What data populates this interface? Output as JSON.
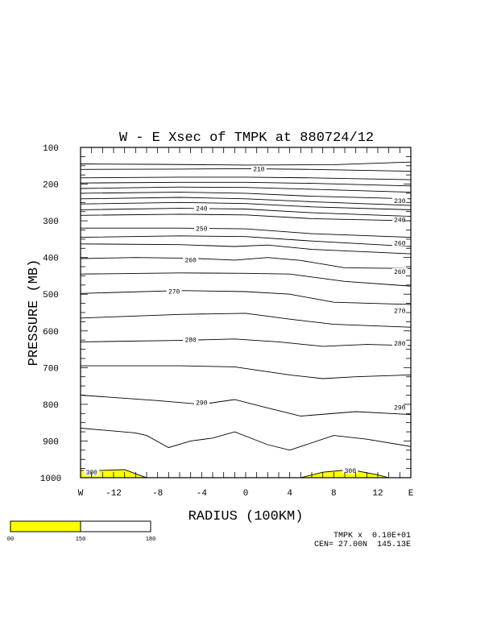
{
  "chart_data": {
    "type": "contour",
    "title": "W - E Xsec of TMPK at 880724/12",
    "xlabel": "RADIUS (100KM)",
    "ylabel": "PRESSURE (MB)",
    "xlim": [
      -15,
      15
    ],
    "ylim": [
      1000,
      100
    ],
    "x_ticks": [
      {
        "v": -15,
        "label": "W"
      },
      {
        "v": -12,
        "label": "-12"
      },
      {
        "v": -8,
        "label": "-8"
      },
      {
        "v": -4,
        "label": "-4"
      },
      {
        "v": 0,
        "label": "0"
      },
      {
        "v": 4,
        "label": "4"
      },
      {
        "v": 8,
        "label": "8"
      },
      {
        "v": 12,
        "label": "12"
      },
      {
        "v": 15,
        "label": "E"
      }
    ],
    "y_ticks": [
      {
        "v": 100,
        "label": "100"
      },
      {
        "v": 200,
        "label": "200"
      },
      {
        "v": 300,
        "label": "300"
      },
      {
        "v": 400,
        "label": "400"
      },
      {
        "v": 500,
        "label": "500"
      },
      {
        "v": 600,
        "label": "600"
      },
      {
        "v": 700,
        "label": "700"
      },
      {
        "v": 800,
        "label": "800"
      },
      {
        "v": 900,
        "label": "900"
      },
      {
        "v": 1000,
        "label": "1000"
      }
    ],
    "contours": [
      {
        "points": [
          [
            -15,
            145
          ],
          [
            -8,
            146
          ],
          [
            0,
            148
          ],
          [
            8,
            147
          ],
          [
            15,
            140
          ]
        ]
      },
      {
        "points": [
          [
            -15,
            160
          ],
          [
            -6,
            159
          ],
          [
            0,
            158
          ],
          [
            6,
            160
          ],
          [
            15,
            165
          ]
        ],
        "label": "210",
        "label_at": [
          1.2,
          158
        ]
      },
      {
        "points": [
          [
            -15,
            183
          ],
          [
            -6,
            181
          ],
          [
            0,
            181
          ],
          [
            6,
            183
          ],
          [
            15,
            188
          ]
        ]
      },
      {
        "points": [
          [
            -15,
            197
          ],
          [
            -6,
            195
          ],
          [
            0,
            195
          ],
          [
            6,
            198
          ],
          [
            15,
            205
          ]
        ]
      },
      {
        "points": [
          [
            -15,
            212
          ],
          [
            -6,
            208
          ],
          [
            0,
            209
          ],
          [
            6,
            214
          ],
          [
            15,
            222
          ]
        ]
      },
      {
        "points": [
          [
            -15,
            225
          ],
          [
            -6,
            222
          ],
          [
            0,
            225
          ],
          [
            6,
            233
          ],
          [
            15,
            240
          ]
        ]
      },
      {
        "points": [
          [
            -15,
            240
          ],
          [
            -6,
            236
          ],
          [
            0,
            240
          ],
          [
            6,
            248
          ],
          [
            15,
            258
          ]
        ],
        "label": "230",
        "label_at": [
          14,
          245
        ]
      },
      {
        "points": [
          [
            -15,
            254
          ],
          [
            -6,
            250
          ],
          [
            0,
            253
          ],
          [
            6,
            262
          ],
          [
            15,
            270
          ]
        ]
      },
      {
        "points": [
          [
            -15,
            270
          ],
          [
            -6,
            266
          ],
          [
            0,
            268
          ],
          [
            6,
            278
          ],
          [
            15,
            288
          ]
        ],
        "label": "240",
        "label_at": [
          -4,
          266
        ]
      },
      {
        "points": [
          [
            -15,
            285
          ],
          [
            -6,
            282
          ],
          [
            0,
            284
          ],
          [
            6,
            294
          ],
          [
            15,
            300
          ]
        ],
        "label": "240",
        "label_at": [
          14,
          297
        ]
      },
      {
        "points": [
          [
            -15,
            320
          ],
          [
            -6,
            320
          ],
          [
            0,
            322
          ],
          [
            6,
            335
          ],
          [
            15,
            345
          ]
        ],
        "label": "250",
        "label_at": [
          -4,
          321
        ]
      },
      {
        "points": [
          [
            -15,
            345
          ],
          [
            -6,
            341
          ],
          [
            0,
            343
          ],
          [
            6,
            355
          ],
          [
            15,
            370
          ]
        ]
      },
      {
        "points": [
          [
            -15,
            363
          ],
          [
            -6,
            365
          ],
          [
            -1,
            370
          ],
          [
            2,
            366
          ],
          [
            6,
            378
          ],
          [
            15,
            390
          ]
        ],
        "label": "260",
        "label_at": [
          14,
          360
        ]
      },
      {
        "points": [
          [
            -15,
            403
          ],
          [
            -10,
            400
          ],
          [
            -5,
            402
          ],
          [
            -1,
            407
          ],
          [
            2,
            400
          ],
          [
            5,
            408
          ],
          [
            9,
            428
          ],
          [
            15,
            430
          ]
        ],
        "label": "260",
        "label_at": [
          -5,
          406
        ]
      },
      {
        "points": [
          [
            -15,
            445
          ],
          [
            -6,
            442
          ],
          [
            0,
            443
          ],
          [
            4,
            445
          ],
          [
            9,
            465
          ],
          [
            15,
            478
          ]
        ],
        "label": "260",
        "label_at": [
          14,
          438
        ]
      },
      {
        "points": [
          [
            -15,
            498
          ],
          [
            -6,
            490
          ],
          [
            0,
            493
          ],
          [
            4,
            500
          ],
          [
            8,
            522
          ],
          [
            15,
            528
          ]
        ],
        "label": "270",
        "label_at": [
          -6.5,
          492
        ]
      },
      {
        "points": [
          [
            -15,
            565
          ],
          [
            -6,
            555
          ],
          [
            0,
            552
          ],
          [
            4,
            568
          ],
          [
            8,
            582
          ],
          [
            15,
            590
          ]
        ],
        "label": "270",
        "label_at": [
          14,
          544
        ]
      },
      {
        "points": [
          [
            -15,
            630
          ],
          [
            -6,
            626
          ],
          [
            -1,
            622
          ],
          [
            3,
            630
          ],
          [
            7,
            642
          ],
          [
            11,
            637
          ],
          [
            15,
            640
          ]
        ],
        "label": "280",
        "label_at": [
          -5,
          624
        ]
      },
      {
        "points": [
          [
            -15,
            695
          ],
          [
            -6,
            695
          ],
          [
            -1,
            698
          ],
          [
            4,
            720
          ],
          [
            7,
            730
          ],
          [
            10,
            725
          ],
          [
            15,
            720
          ]
        ],
        "label": "280",
        "label_at": [
          14,
          633
        ]
      },
      {
        "points": [
          [
            -15,
            775
          ],
          [
            -8,
            790
          ],
          [
            -4,
            800
          ],
          [
            -1,
            787
          ],
          [
            2,
            810
          ],
          [
            5,
            832
          ],
          [
            10,
            820
          ],
          [
            15,
            828
          ]
        ],
        "label": "290",
        "label_at": [
          -4,
          795
        ]
      },
      {
        "points": [
          [
            -15,
            865
          ],
          [
            -10,
            878
          ],
          [
            -9,
            885
          ],
          [
            -7,
            918
          ],
          [
            -5,
            900
          ],
          [
            -3,
            892
          ],
          [
            -1,
            875
          ],
          [
            2,
            910
          ],
          [
            4,
            925
          ],
          [
            8,
            885
          ],
          [
            11,
            895
          ],
          [
            15,
            915
          ]
        ],
        "label": "290",
        "label_at": [
          14,
          808
        ]
      },
      {
        "points": [
          [
            -15,
            980
          ],
          [
            -13,
            980
          ],
          [
            -11,
            978
          ],
          [
            -9.5,
            995
          ],
          [
            -9,
            1000
          ]
        ],
        "label": "300",
        "label_at": [
          -14,
          985
        ]
      },
      {
        "points": [
          [
            5,
            1000
          ],
          [
            7,
            985
          ],
          [
            9.5,
            978
          ],
          [
            12,
            992
          ],
          [
            13,
            1000
          ]
        ],
        "label": "300",
        "label_at": [
          9.5,
          980
        ]
      }
    ],
    "fill_color": "#ffff00",
    "filled_regions": [
      {
        "points": [
          [
            -15,
            1000
          ],
          [
            -15,
            980
          ],
          [
            -13,
            980
          ],
          [
            -11,
            978
          ],
          [
            -9.5,
            995
          ],
          [
            -9,
            1000
          ]
        ]
      },
      {
        "points": [
          [
            5,
            1000
          ],
          [
            7,
            985
          ],
          [
            9.5,
            978
          ],
          [
            12,
            992
          ],
          [
            13,
            1000
          ]
        ]
      }
    ],
    "colorbar": {
      "segments": [
        {
          "color": "#ffff00",
          "from": 100,
          "to": 150
        },
        {
          "color": "#ffffff",
          "from": 150,
          "to": 180
        }
      ],
      "tick_labels": [
        "00",
        "150",
        "180"
      ]
    },
    "annotations": [
      "TMPK x  0.10E+01",
      "CEN= 27.00N  145.13E"
    ]
  }
}
